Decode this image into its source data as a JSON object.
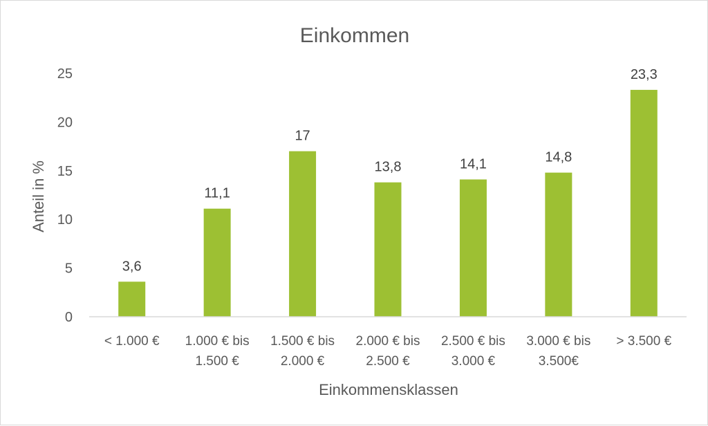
{
  "chart_data": {
    "type": "bar",
    "title": "Einkommen",
    "xlabel": "Einkommensklassen",
    "ylabel": "Anteil in %",
    "ylim": [
      0,
      25
    ],
    "yticks": [
      "0",
      "5",
      "10",
      "15",
      "20",
      "25"
    ],
    "categories": [
      [
        "< 1.000 €"
      ],
      [
        "1.000 € bis",
        "1.500 €"
      ],
      [
        "1.500 € bis",
        "2.000 €"
      ],
      [
        "2.000 € bis",
        "2.500 €"
      ],
      [
        "2.500 € bis",
        "3.000 €"
      ],
      [
        "3.000 € bis",
        "3.500€"
      ],
      [
        "> 3.500 €"
      ]
    ],
    "values": [
      3.6,
      11.1,
      17,
      13.8,
      14.1,
      14.8,
      23.3
    ],
    "data_labels": [
      "3,6",
      "11,1",
      "17",
      "13,8",
      "14,1",
      "14,8",
      "23,3"
    ],
    "grid": false,
    "colors": {
      "bar": "#9dc033",
      "axis": "#d9d9d9",
      "text": "#595959"
    }
  }
}
